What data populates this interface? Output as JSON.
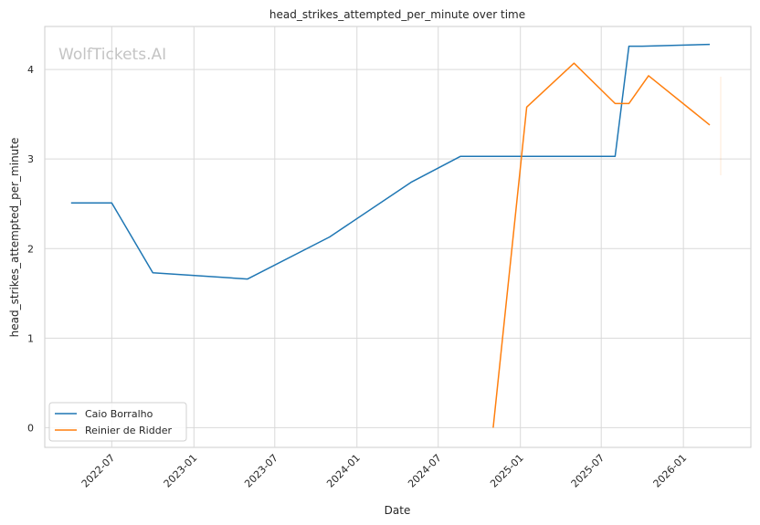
{
  "watermark": "WolfTickets.AI",
  "chart_data": {
    "type": "line",
    "title": "head_strikes_attempted_per_minute over time",
    "xlabel": "Date",
    "ylabel": "head_strikes_attempted_per_minute",
    "x_ticks": [
      "2022-07",
      "2023-01",
      "2023-07",
      "2024-01",
      "2024-07",
      "2025-01",
      "2025-07",
      "2026-01"
    ],
    "y_ticks": [
      0,
      1,
      2,
      3,
      4
    ],
    "xlim": [
      "2022-02-01",
      "2026-06-01"
    ],
    "ylim": [
      -0.22,
      4.48
    ],
    "grid": true,
    "legend_position": "lower-left",
    "series": [
      {
        "name": "Caio Borralho",
        "color": "#1f77b4",
        "points": [
          {
            "x": "2022-04-01",
            "y": 2.51
          },
          {
            "x": "2022-07-01",
            "y": 2.51
          },
          {
            "x": "2022-10-01",
            "y": 1.73
          },
          {
            "x": "2023-05-01",
            "y": 1.66
          },
          {
            "x": "2023-11-01",
            "y": 2.13
          },
          {
            "x": "2024-05-01",
            "y": 2.74
          },
          {
            "x": "2024-08-20",
            "y": 3.03
          },
          {
            "x": "2025-08-01",
            "y": 3.03
          },
          {
            "x": "2025-09-01",
            "y": 4.26
          },
          {
            "x": "2025-10-01",
            "y": 4.26
          },
          {
            "x": "2026-03-01",
            "y": 4.28
          }
        ]
      },
      {
        "name": "Reinier de Ridder",
        "color": "#ff7f0e",
        "points": [
          {
            "x": "2024-11-01",
            "y": 0.0
          },
          {
            "x": "2025-01-15",
            "y": 3.58
          },
          {
            "x": "2025-05-01",
            "y": 4.07
          },
          {
            "x": "2025-08-01",
            "y": 3.62
          },
          {
            "x": "2025-09-01",
            "y": 3.62
          },
          {
            "x": "2025-10-15",
            "y": 3.93
          },
          {
            "x": "2026-03-01",
            "y": 3.38
          }
        ]
      }
    ]
  }
}
